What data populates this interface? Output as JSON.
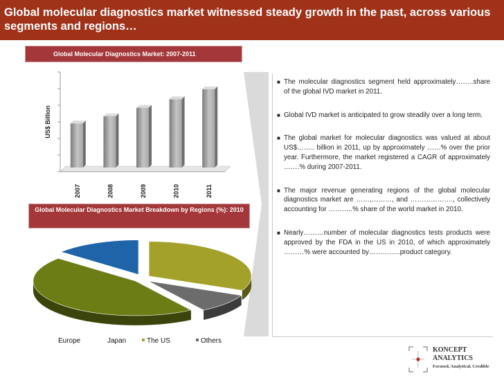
{
  "header": {
    "title": "Global molecular diagnostics market witnessed steady growth in the past, across various segments and regions…"
  },
  "colors": {
    "header_bg": "#a03219",
    "title_bar_bg": "#a3373a"
  },
  "chart_data": [
    {
      "type": "bar",
      "title": "Global Molecular Diagnostics Market: 2007-2011",
      "ylabel": "US$ Billion",
      "categories": [
        "2007",
        "2008",
        "2009",
        "2010",
        "2011"
      ],
      "values": [
        3.1,
        3.6,
        4.2,
        4.8,
        5.5
      ],
      "ylim": [
        0,
        7.0
      ],
      "grid": false
    },
    {
      "type": "pie",
      "title": "Global Molecular Diagnostics Market Breakdown by Regions (%): 2010",
      "categories": [
        "Europe",
        "Japan",
        "The US",
        "Others"
      ],
      "values": [
        40,
        12,
        28,
        8
      ],
      "colors": [
        "#6b7d14",
        "#1f64a8",
        "#a3a12a",
        "#6c6c6c"
      ],
      "legend_position": "bottom"
    }
  ],
  "bullets": [
    "The molecular diagnostics segment held approximately……..share of the global IVD market in 2011.",
    "Global IVD market is anticipated to grow steadily over a long term.",
    "The global market for molecular diagnostics was valued at about US$…….. billion in 2011, up by approximately ……% over the prior year. Furthermore, the market registered a CAGR of approximately …….% during 2007-2011.",
    "The major revenue generating regions of the global molecular diagnostics market are ……,………, and ………………., collectively accounting for ………..% share of the world market in 2010.",
    "Nearly………number of molecular diagnostics tests products were approved by the FDA in the US in 2010, of which approximately ………% were accounted by…………..product category."
  ],
  "bullet_icon": "square-bullet",
  "logo": {
    "name_line1": "KONCEPT",
    "name_line2": "ANALYTICS",
    "tagline": "Focused, Analytical, Credible"
  }
}
